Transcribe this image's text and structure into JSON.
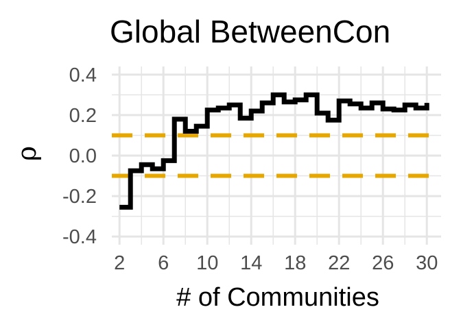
{
  "chart_data": {
    "type": "line",
    "title": "Global BetweenCon",
    "xlabel": "# of Communities",
    "ylabel": "ρ",
    "xlim": [
      1.3,
      31.3
    ],
    "ylim": [
      -0.44,
      0.44
    ],
    "x_ticks": [
      2,
      6,
      10,
      14,
      18,
      22,
      26,
      30
    ],
    "y_ticks": [
      -0.4,
      -0.2,
      0.0,
      0.2,
      0.4
    ],
    "y_tick_labels": [
      "-0.4",
      "-0.2",
      "0.0",
      "0.2",
      "0.4"
    ],
    "grid": true,
    "step": true,
    "colors": {
      "series": "#000000",
      "reference": "#E6A800",
      "grid": "#e5e5e5"
    },
    "reference_lines": [
      0.1,
      -0.1
    ],
    "series": [
      {
        "x": [
          2,
          3,
          4,
          5,
          6,
          7,
          8,
          9,
          10,
          11,
          12,
          13,
          14,
          15,
          16,
          17,
          18,
          19,
          20,
          21,
          22,
          23,
          24,
          25,
          26,
          27,
          28,
          29,
          30
        ],
        "values": [
          -0.255,
          -0.075,
          -0.045,
          -0.065,
          -0.025,
          0.18,
          0.12,
          0.145,
          0.225,
          0.235,
          0.25,
          0.185,
          0.22,
          0.26,
          0.3,
          0.265,
          0.275,
          0.3,
          0.21,
          0.175,
          0.27,
          0.255,
          0.235,
          0.26,
          0.23,
          0.225,
          0.25,
          0.235,
          0.26
        ]
      }
    ]
  }
}
